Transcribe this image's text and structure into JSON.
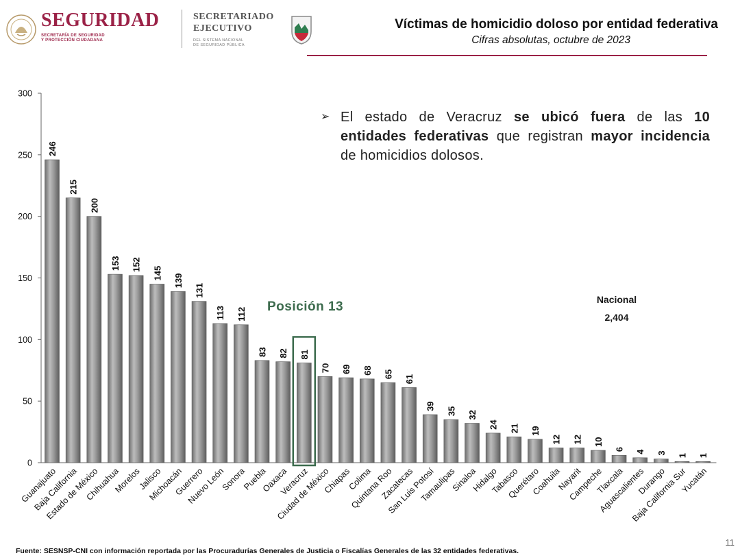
{
  "header": {
    "brand_title": "SEGURIDAD",
    "brand_subtitle_line1": "SECRETARÍA DE SEGURIDAD",
    "brand_subtitle_line2": "Y PROTECCIÓN CIUDADANA",
    "secretariado_line1": "SECRETARIADO",
    "secretariado_line2": "EJECUTIVO",
    "secretariado_sub_line1": "DEL SISTEMA NACIONAL",
    "secretariado_sub_line2": "DE SEGURIDAD PÚBLICA",
    "emblem_icon": "national-emblem-icon",
    "sesnsp_icon": "sesnsp-shield-icon",
    "brand_color": "#9b2247"
  },
  "title": "Víctimas de homicidio doloso por entidad federativa",
  "subtitle": "Cifras absolutas, octubre de 2023",
  "annotation": {
    "bullet": "➢",
    "part1": "El estado de Veracruz ",
    "part2_bold": "se ubicó fuera",
    "part3": " de las ",
    "part4_bold": "10 entidades federativas",
    "part5": " que registran ",
    "part6_bold": "mayor incidencia",
    "part7": " de homicidios dolosos."
  },
  "highlight": {
    "label": "Posición 13",
    "category": "Veracruz",
    "color": "#3c6b4d"
  },
  "nacional": {
    "label": "Nacional",
    "value": "2,404"
  },
  "chart_data": {
    "type": "bar",
    "title": "Víctimas de homicidio doloso por entidad federativa",
    "subtitle": "Cifras absolutas, octubre de 2023",
    "xlabel": "",
    "ylabel": "",
    "ylim": [
      0,
      300
    ],
    "yticks": [
      0,
      50,
      100,
      150,
      200,
      250,
      300
    ],
    "grid": false,
    "bar_color": "#8c8c8c",
    "categories": [
      "Guanajuato",
      "Baja California",
      "Estado de México",
      "Chihuahua",
      "Morelos",
      "Jalisco",
      "Michoacán",
      "Guerrero",
      "Nuevo León",
      "Sonora",
      "Puebla",
      "Oaxaca",
      "Veracruz",
      "Ciudad de México",
      "Chiapas",
      "Colima",
      "Quintana Roo",
      "Zacatecas",
      "San Luis Potosí",
      "Tamaulipas",
      "Sinaloa",
      "Hidalgo",
      "Tabasco",
      "Querétaro",
      "Coahuila",
      "Nayarit",
      "Campeche",
      "Tlaxcala",
      "Aguascalientes",
      "Durango",
      "Baja California Sur",
      "Yucatán"
    ],
    "values": [
      246,
      215,
      200,
      153,
      152,
      145,
      139,
      131,
      113,
      112,
      83,
      82,
      81,
      70,
      69,
      68,
      65,
      61,
      39,
      35,
      32,
      24,
      21,
      19,
      12,
      12,
      10,
      6,
      4,
      3,
      1,
      1
    ]
  },
  "footer": "Fuente: SESNSP-CNI con información reportada por las Procuradurías Generales de Justicia o Fiscalías Generales de las 32 entidades federativas.",
  "page_number": "11"
}
